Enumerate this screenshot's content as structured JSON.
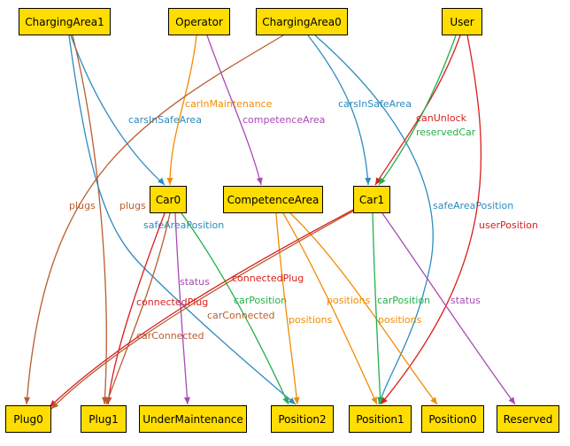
{
  "colors": {
    "node_fill": "#FFDD00",
    "orange": "#F28C00",
    "blue": "#2E8BC0",
    "brown": "#B85C2E",
    "purple": "#A94AB5",
    "green": "#22B04A",
    "red": "#D81E1E"
  },
  "nodes": [
    {
      "id": "ChargingArea1",
      "label": "ChargingArea1"
    },
    {
      "id": "Operator",
      "label": "Operator"
    },
    {
      "id": "ChargingArea0",
      "label": "ChargingArea0"
    },
    {
      "id": "User",
      "label": "User"
    },
    {
      "id": "Car0",
      "label": "Car0"
    },
    {
      "id": "CompetenceArea",
      "label": "CompetenceArea"
    },
    {
      "id": "Car1",
      "label": "Car1"
    },
    {
      "id": "Plug0",
      "label": "Plug0"
    },
    {
      "id": "Plug1",
      "label": "Plug1"
    },
    {
      "id": "UnderMaintenance",
      "label": "UnderMaintenance"
    },
    {
      "id": "Position2",
      "label": "Position2"
    },
    {
      "id": "Position1",
      "label": "Position1"
    },
    {
      "id": "Position0",
      "label": "Position0"
    },
    {
      "id": "Reserved",
      "label": "Reserved"
    }
  ],
  "edges": [
    {
      "from": "ChargingArea1",
      "to": "Car0",
      "label": "carsInSafeArea",
      "color": "blue"
    },
    {
      "from": "ChargingArea1",
      "to": "Plug1",
      "label": "plugs",
      "color": "brown"
    },
    {
      "from": "ChargingArea1",
      "to": "Position2",
      "label": "safeAreaPosition",
      "color": "blue"
    },
    {
      "from": "Operator",
      "to": "Car0",
      "label": "carInMaintenance",
      "color": "orange"
    },
    {
      "from": "Operator",
      "to": "CompetenceArea",
      "label": "competenceArea",
      "color": "purple"
    },
    {
      "from": "ChargingArea0",
      "to": "Plug0",
      "label": "plugs",
      "color": "brown"
    },
    {
      "from": "ChargingArea0",
      "to": "Car1",
      "label": "carsInSafeArea",
      "color": "blue"
    },
    {
      "from": "ChargingArea0",
      "to": "Position1",
      "label": "safeAreaPosition",
      "color": "blue"
    },
    {
      "from": "User",
      "to": "Car1",
      "label": "canUnlock",
      "color": "red"
    },
    {
      "from": "User",
      "to": "Car1",
      "label": "reservedCar",
      "color": "green"
    },
    {
      "from": "User",
      "to": "Position1",
      "label": "userPosition",
      "color": "red"
    },
    {
      "from": "Car0",
      "to": "Plug1",
      "label": "connectedPlug",
      "color": "red"
    },
    {
      "from": "Car0",
      "to": "Plug1",
      "label": "carConnected",
      "color": "brown"
    },
    {
      "from": "Car0",
      "to": "UnderMaintenance",
      "label": "status",
      "color": "purple"
    },
    {
      "from": "Car0",
      "to": "Position2",
      "label": "carPosition",
      "color": "green"
    },
    {
      "from": "CompetenceArea",
      "to": "Position2",
      "label": "positions",
      "color": "orange"
    },
    {
      "from": "CompetenceArea",
      "to": "Position1",
      "label": "positions",
      "color": "orange"
    },
    {
      "from": "CompetenceArea",
      "to": "Position0",
      "label": "positions",
      "color": "orange"
    },
    {
      "from": "Car1",
      "to": "Plug0",
      "label": "connectedPlug",
      "color": "red"
    },
    {
      "from": "Car1",
      "to": "Plug0",
      "label": "carConnected",
      "color": "brown"
    },
    {
      "from": "Car1",
      "to": "Position1",
      "label": "carPosition",
      "color": "green"
    },
    {
      "from": "Car1",
      "to": "Reserved",
      "label": "status",
      "color": "purple"
    }
  ]
}
